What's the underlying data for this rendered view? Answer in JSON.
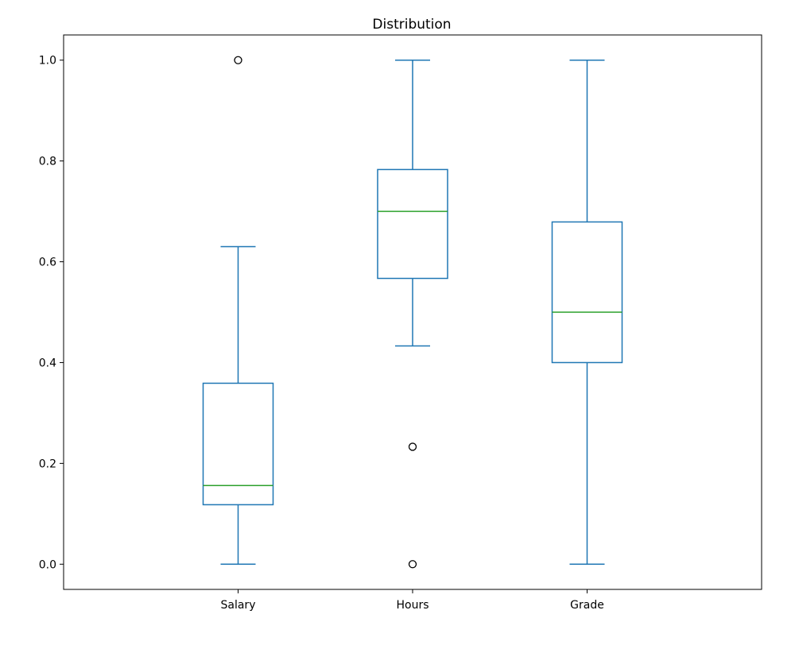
{
  "chart_data": {
    "type": "box",
    "title": "Distribution",
    "xlabel": "",
    "ylabel": "",
    "categories": [
      "Salary",
      "Hours",
      "Grade"
    ],
    "ylim": [
      -0.05,
      1.05
    ],
    "yticks": [
      "0.0",
      "0.2",
      "0.4",
      "0.6",
      "0.8",
      "1.0"
    ],
    "grid": false,
    "boxes": [
      {
        "name": "Salary",
        "whisker_low": 0.0,
        "q1": 0.118,
        "median": 0.156,
        "q3": 0.359,
        "whisker_high": 0.63,
        "outliers": [
          1.0
        ]
      },
      {
        "name": "Hours",
        "whisker_low": 0.433,
        "q1": 0.567,
        "median": 0.7,
        "q3": 0.783,
        "whisker_high": 1.0,
        "outliers": [
          0.233,
          0.0
        ]
      },
      {
        "name": "Grade",
        "whisker_low": 0.0,
        "q1": 0.4,
        "median": 0.5,
        "q3": 0.679,
        "whisker_high": 1.0,
        "outliers": []
      }
    ],
    "colors": {
      "box": "#1f77b4",
      "median": "#2ca02c",
      "outlier": "#000000",
      "axes": "#000000"
    }
  }
}
